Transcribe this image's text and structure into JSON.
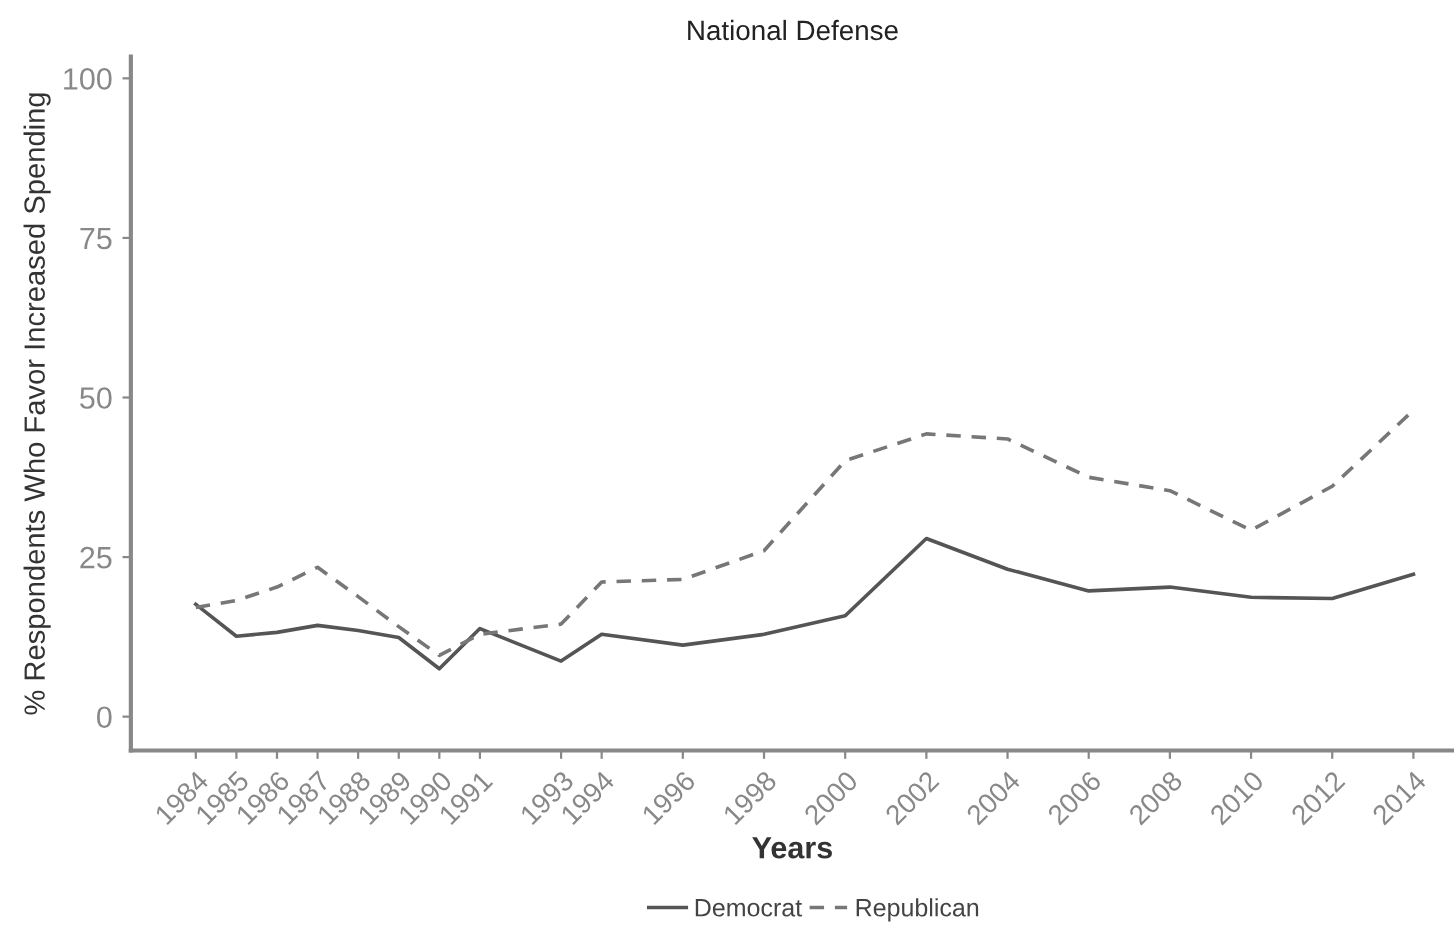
{
  "chart_data": {
    "type": "line",
    "title": "National Defense",
    "xlabel": "Years",
    "ylabel": "% Respondents Who Favor Increased Spending",
    "x": [
      1984,
      1985,
      1986,
      1987,
      1988,
      1989,
      1990,
      1991,
      1993,
      1994,
      1996,
      1998,
      2000,
      2002,
      2004,
      2006,
      2008,
      2010,
      2012,
      2014
    ],
    "series": [
      {
        "name": "Democrat",
        "color": "#555555",
        "line_style": "solid",
        "values": [
          17.6,
          12.6,
          13.2,
          14.3,
          13.5,
          12.4,
          7.5,
          13.8,
          8.7,
          12.9,
          11.2,
          12.9,
          15.8,
          27.9,
          23.1,
          19.7,
          20.3,
          18.7,
          18.5,
          22.3
        ]
      },
      {
        "name": "Republican",
        "color": "#777777",
        "line_style": "dashed",
        "values": [
          17.1,
          18.2,
          20.3,
          23.4,
          18.8,
          14.1,
          9.6,
          12.9,
          14.5,
          21.1,
          21.5,
          26,
          40.1,
          44.3,
          43.5,
          37.5,
          35.4,
          29.2,
          36.1,
          48
        ]
      }
    ],
    "xlim": [
      1982.4,
      2015
    ],
    "xticks": [
      1984,
      1985,
      1986,
      1987,
      1988,
      1989,
      1990,
      1991,
      1993,
      1994,
      1996,
      1998,
      2000,
      2002,
      2004,
      2006,
      2008,
      2010,
      2012,
      2014
    ],
    "ylim": [
      -5.3,
      103.4
    ],
    "yticks": [
      0,
      25,
      50,
      75,
      100
    ],
    "grid": false,
    "legend": "bottom",
    "marker": "none"
  }
}
